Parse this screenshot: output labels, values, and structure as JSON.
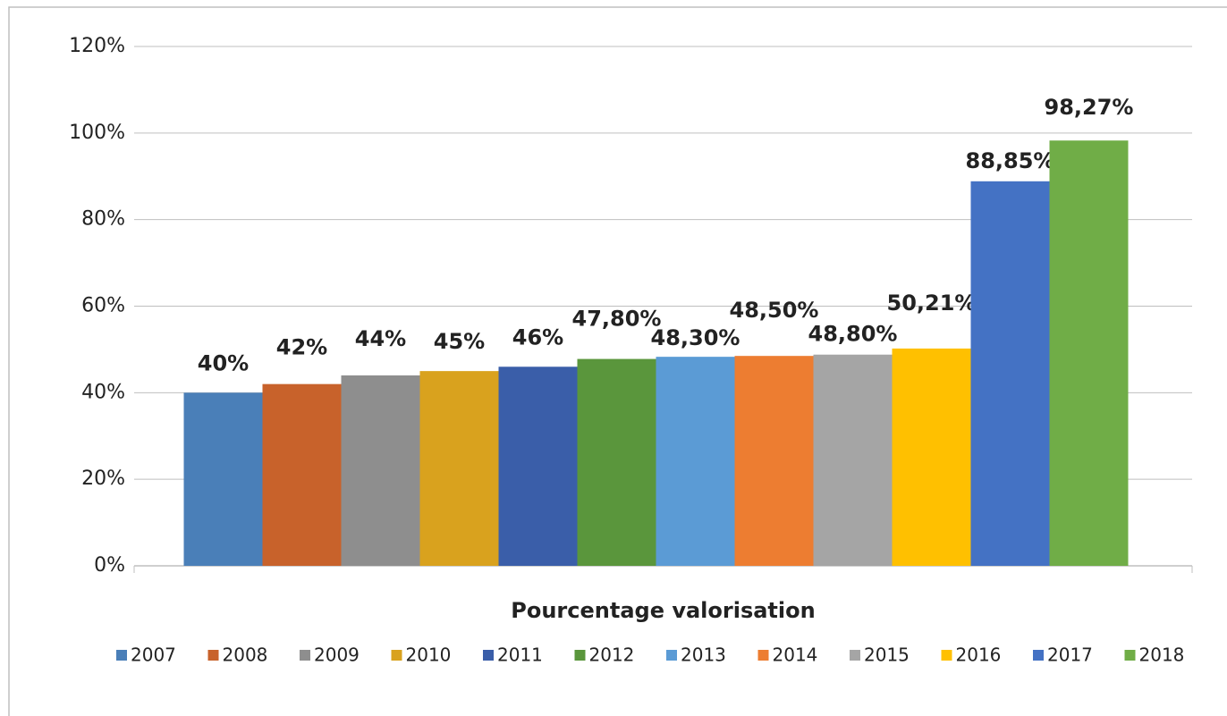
{
  "chart_data": {
    "type": "bar",
    "categories": [
      "Pourcentage valorisation"
    ],
    "series": [
      {
        "name": "2007",
        "color": "#4a7fb8",
        "values": [
          40
        ],
        "value_labels": [
          "40%"
        ]
      },
      {
        "name": "2008",
        "color": "#c8622b",
        "values": [
          42
        ],
        "value_labels": [
          "42%"
        ]
      },
      {
        "name": "2009",
        "color": "#8e8e8e",
        "values": [
          44
        ],
        "value_labels": [
          "44%"
        ]
      },
      {
        "name": "2010",
        "color": "#d9a21e",
        "values": [
          45
        ],
        "value_labels": [
          "45%"
        ]
      },
      {
        "name": "2011",
        "color": "#3a5ea9",
        "values": [
          46
        ],
        "value_labels": [
          "46%"
        ]
      },
      {
        "name": "2012",
        "color": "#5a963c",
        "values": [
          47.8
        ],
        "value_labels": [
          "47,80%"
        ]
      },
      {
        "name": "2013",
        "color": "#5b9bd5",
        "values": [
          48.3
        ],
        "value_labels": [
          "48,30%"
        ]
      },
      {
        "name": "2014",
        "color": "#ed7d31",
        "values": [
          48.5
        ],
        "value_labels": [
          "48,50%"
        ]
      },
      {
        "name": "2015",
        "color": "#a5a5a5",
        "values": [
          48.8
        ],
        "value_labels": [
          "48,80%"
        ]
      },
      {
        "name": "2016",
        "color": "#ffc000",
        "values": [
          50.21
        ],
        "value_labels": [
          "50,21%"
        ]
      },
      {
        "name": "2017",
        "color": "#4472c4",
        "values": [
          88.85
        ],
        "value_labels": [
          "88,85%"
        ]
      },
      {
        "name": "2018",
        "color": "#70ad47",
        "values": [
          98.27
        ],
        "value_labels": [
          "98,27%"
        ]
      }
    ],
    "ylim": [
      0,
      120
    ],
    "yticks": [
      {
        "value": 0,
        "label": "0%"
      },
      {
        "value": 20,
        "label": "20%"
      },
      {
        "value": 40,
        "label": "40%"
      },
      {
        "value": 60,
        "label": "60%"
      },
      {
        "value": 80,
        "label": "80%"
      },
      {
        "value": 100,
        "label": "100%"
      },
      {
        "value": 120,
        "label": "120%"
      }
    ],
    "grid": true,
    "legend": "bottom"
  }
}
